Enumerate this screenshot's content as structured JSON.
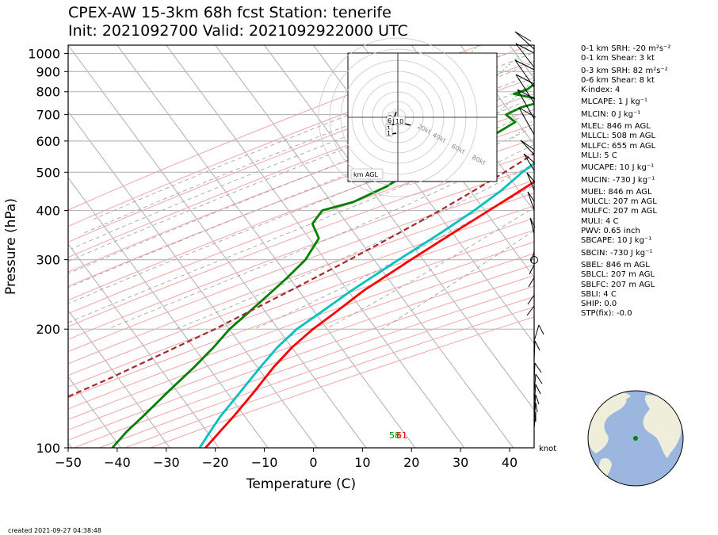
{
  "header": {
    "title_line1": "CPEX-AW 15-3km  68h fcst  Station: tenerife",
    "title_line2": "Init: 2021092700  Valid: 2021092922000 UTC"
  },
  "chart_data": {
    "type": "skew-t",
    "xlabel": "Temperature (C)",
    "ylabel": "Pressure (hPa)",
    "xlim": [
      -50,
      45
    ],
    "ylim": [
      1050,
      100
    ],
    "x_ticks": [
      -50,
      -40,
      -30,
      -20,
      -10,
      0,
      10,
      20,
      30,
      40
    ],
    "y_ticks": [
      100,
      200,
      300,
      400,
      500,
      600,
      700,
      800,
      900,
      1000
    ],
    "y_scale": "log",
    "grid": true,
    "series": [
      {
        "color": "#ff0000",
        "points": [
          [
            1000,
            18.5
          ],
          [
            985,
            17
          ],
          [
            960,
            15
          ],
          [
            940,
            18.5
          ],
          [
            925,
            19.8
          ],
          [
            900,
            19.5
          ],
          [
            870,
            19.3
          ],
          [
            850,
            19.9
          ],
          [
            825,
            21
          ],
          [
            800,
            21.3
          ],
          [
            780,
            20.5
          ],
          [
            755,
            19.5
          ],
          [
            710,
            18.6
          ],
          [
            675,
            17.5
          ],
          [
            640,
            15.8
          ],
          [
            600,
            13
          ],
          [
            550,
            9.7
          ],
          [
            500,
            6.5
          ],
          [
            450,
            3.5
          ],
          [
            400,
            0
          ],
          [
            350,
            -4
          ],
          [
            300,
            -8.5
          ],
          [
            250,
            -13.5
          ],
          [
            220,
            -16
          ],
          [
            200,
            -18
          ],
          [
            180,
            -19.5
          ],
          [
            160,
            -20.3
          ],
          [
            140,
            -20.5
          ],
          [
            120,
            -21
          ],
          [
            110,
            -21.5
          ],
          [
            100,
            -22
          ]
        ]
      },
      {
        "color": "#00c0c0",
        "points": [
          [
            985,
            16
          ],
          [
            960,
            15
          ],
          [
            940,
            14
          ],
          [
            910,
            12
          ],
          [
            870,
            10
          ],
          [
            850,
            8.5
          ],
          [
            820,
            8
          ],
          [
            800,
            8
          ],
          [
            775,
            8.8
          ],
          [
            750,
            9.3
          ],
          [
            700,
            8
          ],
          [
            660,
            7.8
          ],
          [
            620,
            6.5
          ],
          [
            600,
            5
          ],
          [
            550,
            3
          ],
          [
            500,
            1
          ],
          [
            450,
            -0.5
          ],
          [
            400,
            -3
          ],
          [
            350,
            -6.5
          ],
          [
            300,
            -11
          ],
          [
            250,
            -16
          ],
          [
            220,
            -19
          ],
          [
            200,
            -21.3
          ],
          [
            180,
            -22.5
          ],
          [
            160,
            -23
          ],
          [
            140,
            -23.3
          ],
          [
            120,
            -23.7
          ],
          [
            110,
            -23.5
          ],
          [
            100,
            -23.2
          ]
        ]
      },
      {
        "color": "#008000",
        "points": [
          [
            985,
            15.3
          ],
          [
            960,
            14.8
          ],
          [
            940,
            14.5
          ],
          [
            910,
            13
          ],
          [
            880,
            6.5
          ],
          [
            850,
            -6
          ],
          [
            830,
            -10
          ],
          [
            810,
            -10.5
          ],
          [
            790,
            -12.5
          ],
          [
            760,
            -5
          ],
          [
            730,
            -9
          ],
          [
            700,
            -11
          ],
          [
            670,
            -8
          ],
          [
            630,
            -10
          ],
          [
            600,
            -13
          ],
          [
            560,
            -15.5
          ],
          [
            520,
            -19
          ],
          [
            500,
            -22
          ],
          [
            460,
            -24.5
          ],
          [
            420,
            -29
          ],
          [
            400,
            -34
          ],
          [
            370,
            -34
          ],
          [
            340,
            -30.5
          ],
          [
            300,
            -30
          ],
          [
            270,
            -31
          ],
          [
            240,
            -32.5
          ],
          [
            200,
            -35
          ],
          [
            180,
            -35.5
          ],
          [
            160,
            -36.5
          ],
          [
            140,
            -38
          ],
          [
            120,
            -39.5
          ],
          [
            110,
            -40.5
          ],
          [
            100,
            -41
          ]
        ]
      },
      {
        "color": "#a52a2a",
        "dashed": true,
        "points": [
          [
            1000,
            19.5
          ],
          [
            950,
            17.5
          ],
          [
            900,
            15.5
          ],
          [
            850,
            13.5
          ],
          [
            800,
            11.5
          ],
          [
            750,
            9.6
          ],
          [
            700,
            7.5
          ],
          [
            650,
            5.3
          ],
          [
            600,
            2.8
          ],
          [
            550,
            0.2
          ],
          [
            500,
            -2.6
          ],
          [
            450,
            -6
          ],
          [
            400,
            -10
          ],
          [
            350,
            -15
          ],
          [
            300,
            -21
          ],
          [
            250,
            -28.5
          ],
          [
            200,
            -38
          ],
          [
            150,
            -52
          ],
          [
            120,
            -64
          ]
        ]
      }
    ],
    "annotations": [
      "58",
      "61"
    ]
  },
  "hodograph": {
    "rings_labels": [
      "20kt",
      "40kt",
      "60kt",
      "80kt"
    ],
    "km_labels": [
      "3",
      "6",
      "10",
      "1",
      "1"
    ],
    "legend": "km AGL"
  },
  "wind_unit_label": "knot",
  "indices": [
    {
      "text": "0-1 km SRH: -20 m²s⁻²"
    },
    {
      "text": "0-1 km Shear: 3 kt"
    },
    {
      "text": "0-3 km SRH: 82 m²s⁻²",
      "gap": true
    },
    {
      "text": "0-6 km Shear: 8 kt"
    },
    {
      "text": "K-index: 4"
    },
    {
      "text": "MLCAPE: 1 J kg⁻¹",
      "gap": true
    },
    {
      "text": "MLCIN: 0 J kg⁻¹",
      "gap": true
    },
    {
      "text": "MLEL: 846 m AGL",
      "gap": true
    },
    {
      "text": "MLLCL: 508 m AGL"
    },
    {
      "text": "MLLFC: 655 m AGL"
    },
    {
      "text": "MLLI: 5 C"
    },
    {
      "text": "MUCAPE: 10 J kg⁻¹",
      "gap": true
    },
    {
      "text": "MUCIN: -730 J kg⁻¹",
      "gap": true
    },
    {
      "text": "MUEL: 846 m AGL",
      "gap": true
    },
    {
      "text": "MULCL: 207 m AGL"
    },
    {
      "text": "MULFC: 207 m AGL"
    },
    {
      "text": "MULI: 4 C"
    },
    {
      "text": "PWV: 0.65 inch"
    },
    {
      "text": "SBCAPE: 10 J kg⁻¹"
    },
    {
      "text": "SBCIN: -730 J kg⁻¹",
      "gap": true
    },
    {
      "text": "SBEL: 846 m AGL",
      "gap": true
    },
    {
      "text": "SBLCL: 207 m AGL"
    },
    {
      "text": "SBLFC: 207 m AGL"
    },
    {
      "text": "SBLI: 4 C"
    },
    {
      "text": "SHIP: 0.0"
    },
    {
      "text": "STP(fix): -0.0"
    }
  ],
  "footer": "created 2021-09-27 04:38:48",
  "colors": {
    "temperature": "#ff0000",
    "dewpoint": "#008000",
    "virtual_temp": "#00c0c0",
    "parcel": "#a52a2a",
    "dry_adiabat": "#f4a6a6",
    "moist_adiabat": "#9a9a9a",
    "mixing_ratio": "#5cb85c",
    "globe_ocean": "#9bb7e0",
    "globe_land": "#efeedb",
    "station_marker": "#008000"
  }
}
